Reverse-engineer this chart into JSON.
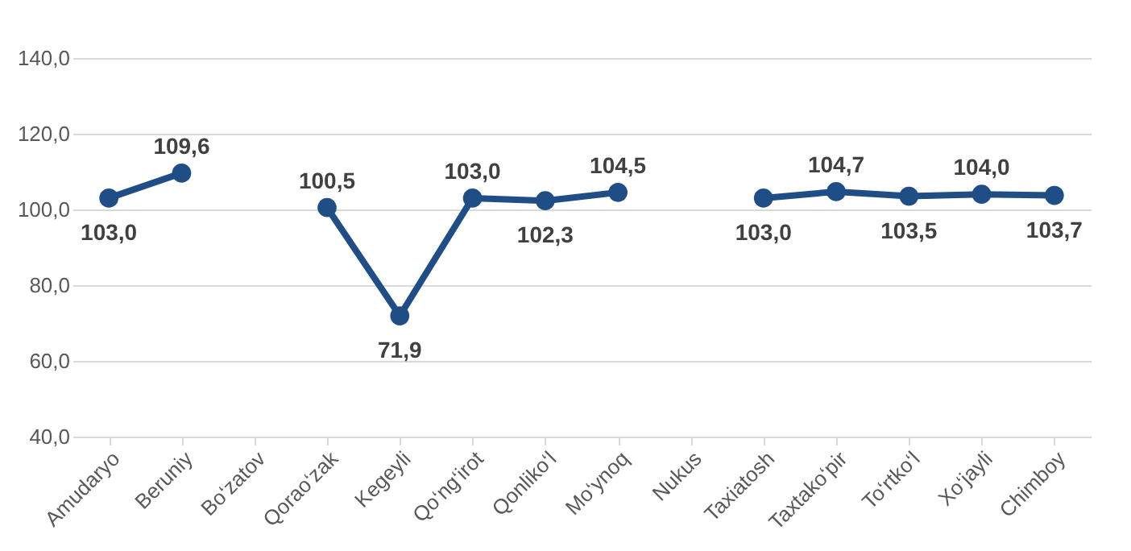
{
  "chart_data": {
    "type": "line",
    "categories": [
      "Amudaryo",
      "Beruniy",
      "Bo‘zatov",
      "Qorao‘zak",
      "Kegeyli",
      "Qo‘ng‘irot",
      "Qonliko‘l",
      "Mo‘ynoq",
      "Nukus",
      "Taxiatosh",
      "Taxtako‘pir",
      "To‘rtko‘l",
      "Xo‘jayli",
      "Chimboy"
    ],
    "series": [
      {
        "color": "#1f4e87",
        "values": [
          103.0,
          109.6,
          null,
          100.5,
          71.9,
          103.0,
          102.3,
          104.5,
          null,
          103.0,
          104.7,
          103.5,
          104.0,
          103.7
        ],
        "value_labels": [
          "103,0",
          "109,6",
          null,
          "100,5",
          "71,9",
          "103,0",
          "102,3",
          "104,5",
          null,
          "103,0",
          "104,7",
          "103,5",
          "104,0",
          "103,7"
        ]
      }
    ],
    "ylim": [
      40,
      140
    ],
    "yticks": [
      {
        "value": 40,
        "label": "40,0"
      },
      {
        "value": 60,
        "label": "60,0"
      },
      {
        "value": 80,
        "label": "80,0"
      },
      {
        "value": 100,
        "label": "100,0"
      },
      {
        "value": 120,
        "label": "120,0"
      },
      {
        "value": 140,
        "label": "140,0"
      }
    ],
    "grid": "y",
    "marker": "circle",
    "line_style": "solid"
  }
}
